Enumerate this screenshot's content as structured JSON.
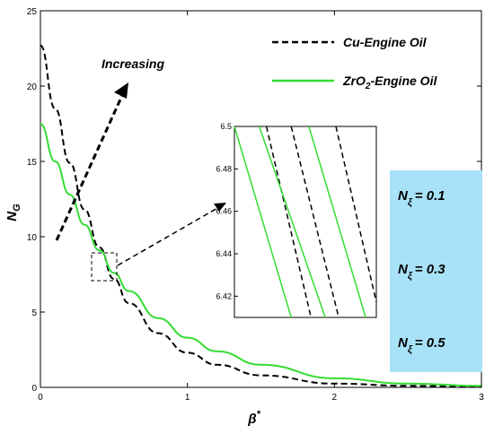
{
  "chart_data": {
    "type": "line",
    "xlabel": "β*",
    "ylabel": "N_G",
    "xlim": [
      0,
      3
    ],
    "ylim": [
      0,
      25
    ],
    "x_ticks": [
      "0",
      "1",
      "2",
      "3"
    ],
    "y_ticks": [
      "0",
      "5",
      "10",
      "15",
      "20",
      "25"
    ],
    "grid": false,
    "legend_position": "top-right",
    "legend": [
      {
        "label": "Cu-Engine Oil",
        "color": "#000000",
        "style": "dashed"
      },
      {
        "label": "ZrO2-Engine Oil",
        "color": "#33dd33",
        "style": "solid"
      }
    ],
    "series": [
      {
        "name": "Cu-Engine Oil",
        "color": "#000000",
        "style": "dashed",
        "x": [
          0,
          0.1,
          0.2,
          0.3,
          0.4,
          0.5,
          0.6,
          0.8,
          1.0,
          1.2,
          1.5,
          2.0,
          2.5,
          3.0
        ],
        "y": [
          22.7,
          18.5,
          14.9,
          11.8,
          9.3,
          7.2,
          5.6,
          3.6,
          2.3,
          1.5,
          0.8,
          0.25,
          0.1,
          0.05
        ]
      },
      {
        "name": "ZrO2-Engine Oil",
        "color": "#33dd33",
        "style": "solid",
        "x": [
          0,
          0.1,
          0.2,
          0.3,
          0.4,
          0.5,
          0.6,
          0.8,
          1.0,
          1.2,
          1.5,
          2.0,
          2.5,
          3.0
        ],
        "y": [
          17.5,
          15.0,
          12.8,
          10.8,
          9.1,
          7.6,
          6.4,
          4.6,
          3.3,
          2.4,
          1.5,
          0.6,
          0.25,
          0.1
        ]
      }
    ],
    "annotations": {
      "increasing": "Increasing",
      "params": [
        {
          "base": "N",
          "sub": "ξ",
          "value": "= 0.1"
        },
        {
          "base": "N",
          "sub": "ξ",
          "value": "= 0.3"
        },
        {
          "base": "N",
          "sub": "ξ",
          "value": "= 0.5"
        }
      ],
      "param_box_color": "#a8e2f8"
    },
    "inset": {
      "ylim": [
        6.41,
        6.5
      ],
      "y_ticks": [
        "6.5",
        "6.48",
        "6.46",
        "6.44",
        "6.42"
      ],
      "lines": [
        {
          "style": "solid",
          "color": "#33dd33",
          "top": 0.0,
          "bottom": 0.8
        },
        {
          "style": "dashed",
          "color": "#000000",
          "top": 0.45,
          "bottom": 1.08
        },
        {
          "style": "solid",
          "color": "#33dd33",
          "top": 0.35,
          "bottom": 1.28
        },
        {
          "style": "dashed",
          "color": "#000000",
          "top": 0.8,
          "bottom": 1.47
        },
        {
          "style": "solid",
          "color": "#33dd33",
          "top": 1.05,
          "bottom": 1.85
        },
        {
          "style": "dashed",
          "color": "#000000",
          "top": 1.43,
          "bottom": 2.05
        }
      ]
    }
  }
}
